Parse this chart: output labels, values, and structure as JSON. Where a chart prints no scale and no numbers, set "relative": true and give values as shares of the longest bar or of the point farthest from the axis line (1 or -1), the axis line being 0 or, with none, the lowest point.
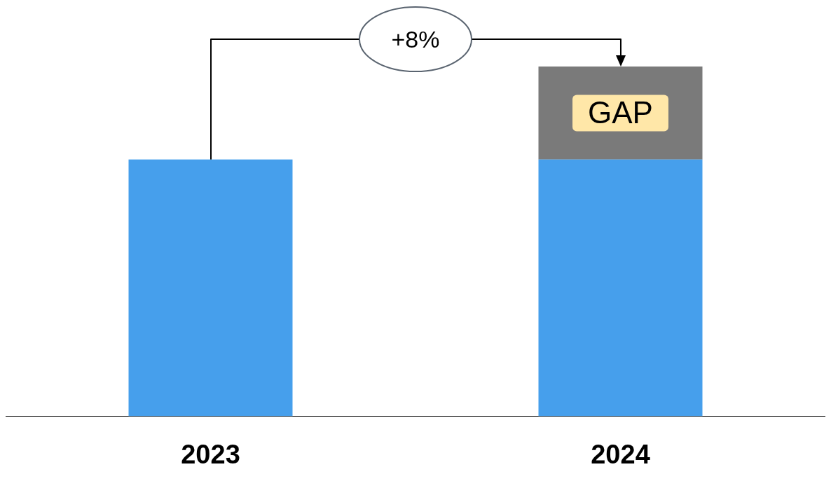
{
  "chart_data": {
    "type": "bar",
    "relative": true,
    "stacked": true,
    "categories": [
      "2023",
      "2024"
    ],
    "series": [
      {
        "color": "#469fec",
        "values": [
          0.734,
          0.734
        ]
      },
      {
        "color": "#7a7a7a",
        "values": [
          null,
          0.266
        ]
      }
    ],
    "annotations": [
      "+8%",
      "GAP"
    ],
    "grid": false,
    "legend": false
  }
}
